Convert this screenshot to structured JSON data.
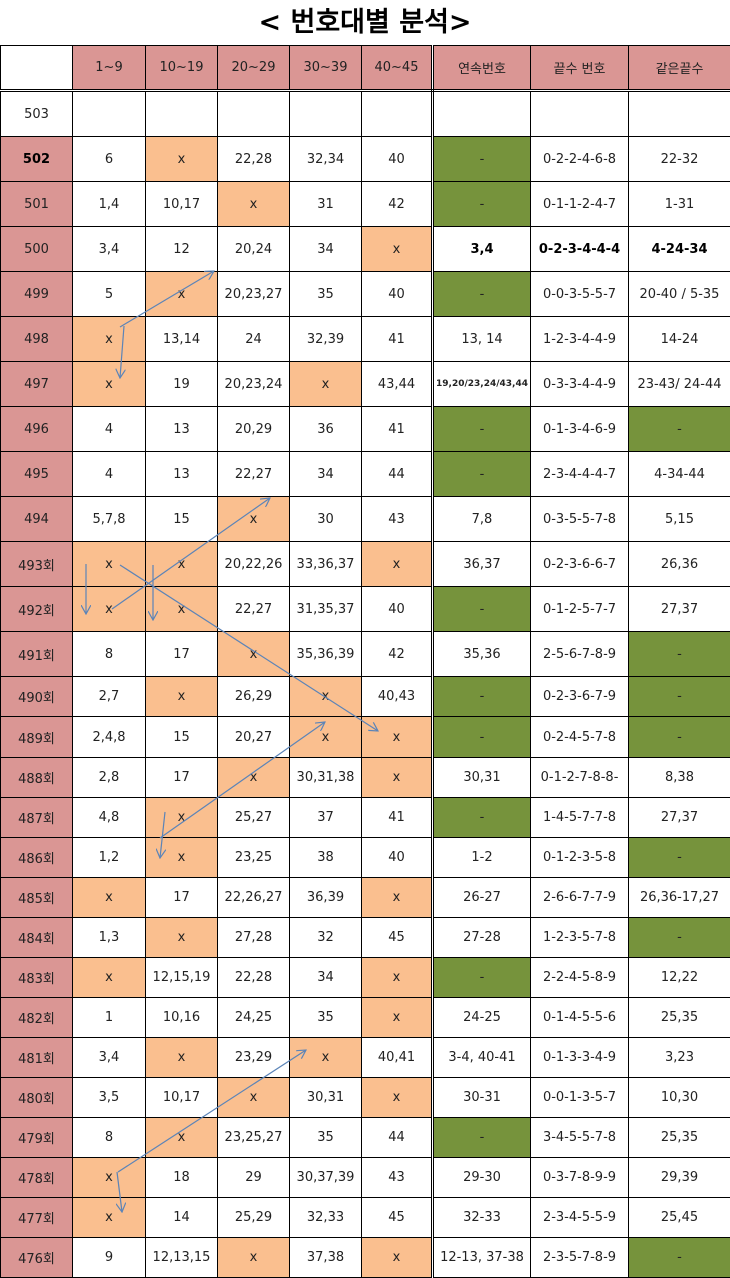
{
  "title": "< 번호대별 분석>",
  "colors": {
    "header": "#DA9694",
    "orange": "#FABF8F",
    "green": "#76933C",
    "arrow": "#5B84B8"
  },
  "headers": [
    "",
    "1~9",
    "10~19",
    "20~29",
    "30~39",
    "40~45",
    "연속번호",
    "끝수 번호",
    "같은끝수"
  ],
  "rows": [
    {
      "label": "503",
      "cells": [
        "",
        "",
        "",
        "",
        "",
        "",
        "",
        ""
      ],
      "fill": [
        "",
        "",
        "",
        "",
        "",
        "",
        "",
        ""
      ]
    },
    {
      "label": "502",
      "bold_label": true,
      "cells": [
        "6",
        "x",
        "22,28",
        "32,34",
        "40",
        "-",
        "0-2-2-4-6-8",
        "22-32"
      ],
      "fill": [
        "",
        "o",
        "",
        "",
        "",
        "g",
        "",
        ""
      ]
    },
    {
      "label": "501",
      "cells": [
        "1,4",
        "10,17",
        "x",
        "31",
        "42",
        "-",
        "0-1-1-2-4-7",
        "1-31"
      ],
      "fill": [
        "",
        "",
        "o",
        "",
        "",
        "g",
        "",
        ""
      ]
    },
    {
      "label": "500",
      "bold_tail": true,
      "cells": [
        "3,4",
        "12",
        "20,24",
        "34",
        "x",
        "3,4",
        "0-2-3-4-4-4",
        "4-24-34"
      ],
      "fill": [
        "",
        "",
        "",
        "",
        "o",
        "",
        "",
        ""
      ]
    },
    {
      "label": "499",
      "cells": [
        "5",
        "x",
        "20,23,27",
        "35",
        "40",
        "-",
        "0-0-3-5-5-7",
        "20-40 / 5-35"
      ],
      "fill": [
        "",
        "o",
        "",
        "",
        "",
        "g",
        "",
        ""
      ]
    },
    {
      "label": "498",
      "cells": [
        "x",
        "13,14",
        "24",
        "32,39",
        "41",
        "13, 14",
        "1-2-3-4-4-9",
        "14-24"
      ],
      "fill": [
        "o",
        "",
        "",
        "",
        "",
        "",
        "",
        ""
      ]
    },
    {
      "label": "497",
      "cells": [
        "x",
        "19",
        "20,23,24",
        "x",
        "43,44",
        "19,20/23,24/43,44",
        "0-3-3-4-4-9",
        "23-43/ 24-44"
      ],
      "fill": [
        "o",
        "",
        "",
        "o",
        "",
        "",
        "",
        ""
      ]
    },
    {
      "label": "496",
      "cells": [
        "4",
        "13",
        "20,29",
        "36",
        "41",
        "-",
        "0-1-3-4-6-9",
        "-"
      ],
      "fill": [
        "",
        "",
        "",
        "",
        "",
        "g",
        "",
        "g"
      ]
    },
    {
      "label": "495",
      "cells": [
        "4",
        "13",
        "22,27",
        "34",
        "44",
        "-",
        "2-3-4-4-4-7",
        "4-34-44"
      ],
      "fill": [
        "",
        "",
        "",
        "",
        "",
        "g",
        "",
        ""
      ]
    },
    {
      "label": "494",
      "cells": [
        "5,7,8",
        "15",
        "x",
        "30",
        "43",
        "7,8",
        "0-3-5-5-7-8",
        "5,15"
      ],
      "fill": [
        "",
        "",
        "o",
        "",
        "",
        "",
        "",
        ""
      ]
    },
    {
      "label": "493회",
      "cells": [
        "x",
        "x",
        "20,22,26",
        "33,36,37",
        "x",
        "36,37",
        "0-2-3-6-6-7",
        "26,36"
      ],
      "fill": [
        "o",
        "o",
        "",
        "",
        "o",
        "",
        "",
        ""
      ]
    },
    {
      "label": "492회",
      "cells": [
        "x",
        "x",
        "22,27",
        "31,35,37",
        "40",
        "-",
        "0-1-2-5-7-7",
        "27,37"
      ],
      "fill": [
        "o",
        "o",
        "",
        "",
        "",
        "g",
        "",
        ""
      ]
    },
    {
      "label": "491회",
      "cells": [
        "8",
        "17",
        "x",
        "35,36,39",
        "42",
        "35,36",
        "2-5-6-7-8-9",
        "-"
      ],
      "fill": [
        "",
        "",
        "o",
        "",
        "",
        "",
        "",
        "g"
      ]
    },
    {
      "label": "490회",
      "cells": [
        "2,7",
        "x",
        "26,29",
        "x",
        "40,43",
        "-",
        "0-2-3-6-7-9",
        "-"
      ],
      "fill": [
        "",
        "o",
        "",
        "o",
        "",
        "g",
        "",
        "g"
      ]
    },
    {
      "label": "489회",
      "cells": [
        "2,4,8",
        "15",
        "20,27",
        "x",
        "x",
        "-",
        "0-2-4-5-7-8",
        "-"
      ],
      "fill": [
        "",
        "",
        "",
        "o",
        "o",
        "g",
        "",
        "g"
      ]
    },
    {
      "label": "488회",
      "cells": [
        "2,8",
        "17",
        "x",
        "30,31,38",
        "x",
        "30,31",
        "0-1-2-7-8-8-",
        "8,38"
      ],
      "fill": [
        "",
        "",
        "o",
        "",
        "o",
        "",
        "",
        ""
      ]
    },
    {
      "label": "487회",
      "cells": [
        "4,8",
        "x",
        "25,27",
        "37",
        "41",
        "-",
        "1-4-5-7-7-8",
        "27,37"
      ],
      "fill": [
        "",
        "o",
        "",
        "",
        "",
        "g",
        "",
        ""
      ]
    },
    {
      "label": "486회",
      "cells": [
        "1,2",
        "x",
        "23,25",
        "38",
        "40",
        "1-2",
        "0-1-2-3-5-8",
        "-"
      ],
      "fill": [
        "",
        "o",
        "",
        "",
        "",
        "",
        "",
        "g"
      ]
    },
    {
      "label": "485회",
      "cells": [
        "x",
        "17",
        "22,26,27",
        "36,39",
        "x",
        "26-27",
        "2-6-6-7-7-9",
        "26,36-17,27"
      ],
      "fill": [
        "o",
        "",
        "",
        "",
        "o",
        "",
        "",
        ""
      ]
    },
    {
      "label": "484회",
      "cells": [
        "1,3",
        "x",
        "27,28",
        "32",
        "45",
        "27-28",
        "1-2-3-5-7-8",
        "-"
      ],
      "fill": [
        "",
        "o",
        "",
        "",
        "",
        "",
        "",
        "g"
      ]
    },
    {
      "label": "483회",
      "cells": [
        "x",
        "12,15,19",
        "22,28",
        "34",
        "x",
        "-",
        "2-2-4-5-8-9",
        "12,22"
      ],
      "fill": [
        "o",
        "",
        "",
        "",
        "o",
        "g",
        "",
        ""
      ]
    },
    {
      "label": "482회",
      "cells": [
        "1",
        "10,16",
        "24,25",
        "35",
        "x",
        "24-25",
        "0-1-4-5-5-6",
        "25,35"
      ],
      "fill": [
        "",
        "",
        "",
        "",
        "o",
        "",
        "",
        ""
      ]
    },
    {
      "label": "481회",
      "cells": [
        "3,4",
        "x",
        "23,29",
        "x",
        "40,41",
        "3-4, 40-41",
        "0-1-3-3-4-9",
        "3,23"
      ],
      "fill": [
        "",
        "o",
        "",
        "o",
        "",
        "",
        "",
        ""
      ]
    },
    {
      "label": "480회",
      "cells": [
        "3,5",
        "10,17",
        "x",
        "30,31",
        "x",
        "30-31",
        "0-0-1-3-5-7",
        "10,30"
      ],
      "fill": [
        "",
        "",
        "o",
        "",
        "o",
        "",
        "",
        ""
      ]
    },
    {
      "label": "479회",
      "cells": [
        "8",
        "x",
        "23,25,27",
        "35",
        "44",
        "-",
        "3-4-5-5-7-8",
        "25,35"
      ],
      "fill": [
        "",
        "o",
        "",
        "",
        "",
        "g",
        "",
        ""
      ]
    },
    {
      "label": "478회",
      "cells": [
        "x",
        "18",
        "29",
        "30,37,39",
        "43",
        "29-30",
        "0-3-7-8-9-9",
        "29,39"
      ],
      "fill": [
        "o",
        "",
        "",
        "",
        "",
        "",
        "",
        ""
      ]
    },
    {
      "label": "477회",
      "cells": [
        "x",
        "14",
        "25,29",
        "32,33",
        "45",
        "32-33",
        "2-3-4-5-5-9",
        "25,45"
      ],
      "fill": [
        "o",
        "",
        "",
        "",
        "",
        "",
        "",
        ""
      ]
    },
    {
      "label": "476회",
      "cells": [
        "9",
        "12,13,15",
        "x",
        "37,38",
        "x",
        "12-13, 37-38",
        "2-3-5-7-8-9",
        "-"
      ],
      "fill": [
        "",
        "",
        "o",
        "",
        "o",
        "",
        "",
        "g"
      ]
    }
  ]
}
